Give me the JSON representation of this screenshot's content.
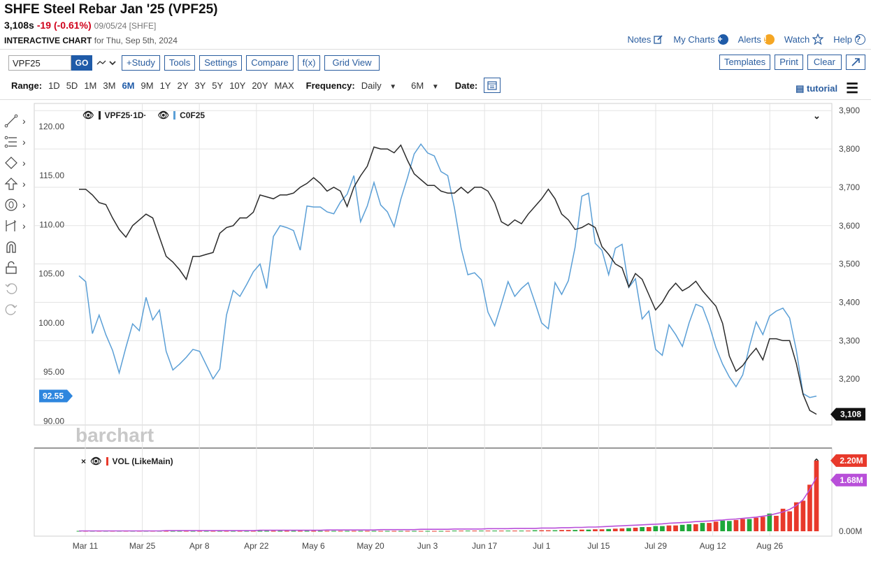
{
  "header": {
    "title": "SHFE Steel Rebar Jan '25 (VPF25)",
    "last": "3,108s",
    "change": "-19 (-0.61%)",
    "date_exchange": "09/05/24 [SHFE]",
    "chart_label": "INTERACTIVE CHART",
    "chart_for": "for Thu, Sep 5th, 2024"
  },
  "toplinks": {
    "notes": "Notes",
    "mycharts": "My Charts",
    "alerts": "Alerts",
    "watch": "Watch",
    "help": "Help"
  },
  "toolbar": {
    "symbol": "VPF25",
    "go": "GO",
    "study": "+Study",
    "tools": "Tools",
    "settings": "Settings",
    "compare": "Compare",
    "fx": "f(x)",
    "gridview": "Grid View",
    "templates": "Templates",
    "print": "Print",
    "clear": "Clear"
  },
  "ranges": {
    "label": "Range:",
    "items": [
      "1D",
      "5D",
      "1M",
      "3M",
      "6M",
      "9M",
      "1Y",
      "2Y",
      "3Y",
      "5Y",
      "10Y",
      "20Y",
      "MAX"
    ],
    "active": "6M",
    "freq_label": "Frequency:",
    "freq_value": "Daily",
    "period_value": "6M",
    "date_label": "Date:",
    "tutorial": "tutorial"
  },
  "legend": {
    "main_series": "VPF25·1D·",
    "compare_series": "C0F25",
    "volume_series": "VOL (LikeMain)"
  },
  "watermark": "barchart",
  "colors": {
    "price": "#2b2b2b",
    "compare": "#5b9fd6",
    "vol_up": "#1fa83a",
    "vol_down": "#e8392b",
    "vol_avg": "#b84fd9",
    "accent": "#1f5ba8"
  },
  "chart_data": [
    {
      "type": "line",
      "x_labels": [
        "Mar 11",
        "Mar 25",
        "Apr 8",
        "Apr 22",
        "May 6",
        "May 20",
        "Jun 3",
        "Jun 17",
        "Jul 1",
        "Jul 15",
        "Jul 29",
        "Aug 12",
        "Aug 26"
      ],
      "right_axis": {
        "ticks": [
          "3,900",
          "3,800",
          "3,700",
          "3,600",
          "3,500",
          "3,400",
          "3,300",
          "3,200"
        ],
        "ylim": [
          3080,
          3915
        ]
      },
      "left_axis": {
        "ticks": [
          "120.00",
          "115.00",
          "110.00",
          "105.00",
          "100.00",
          "95.00",
          "90.00"
        ],
        "ylim": [
          89.6,
          122.2
        ]
      },
      "series": [
        {
          "name": "VPF25",
          "axis": "right",
          "values": [
            3695,
            3695,
            3680,
            3660,
            3655,
            3620,
            3590,
            3570,
            3600,
            3615,
            3630,
            3620,
            3570,
            3520,
            3505,
            3485,
            3460,
            3520,
            3520,
            3525,
            3530,
            3580,
            3595,
            3600,
            3620,
            3620,
            3635,
            3680,
            3675,
            3670,
            3680,
            3680,
            3685,
            3700,
            3710,
            3725,
            3710,
            3690,
            3700,
            3690,
            3650,
            3700,
            3730,
            3755,
            3805,
            3800,
            3800,
            3790,
            3810,
            3770,
            3735,
            3720,
            3705,
            3705,
            3690,
            3685,
            3685,
            3700,
            3685,
            3700,
            3700,
            3690,
            3660,
            3610,
            3600,
            3615,
            3605,
            3630,
            3650,
            3670,
            3695,
            3670,
            3630,
            3615,
            3590,
            3595,
            3605,
            3595,
            3545,
            3525,
            3500,
            3490,
            3440,
            3475,
            3460,
            3420,
            3380,
            3400,
            3430,
            3450,
            3430,
            3440,
            3455,
            3430,
            3410,
            3390,
            3345,
            3260,
            3220,
            3235,
            3260,
            3280,
            3250,
            3305,
            3305,
            3300,
            3300,
            3240,
            3160,
            3118,
            3108
          ]
        },
        {
          "name": "C0F25",
          "axis": "left",
          "values": [
            104.8,
            104.2,
            98.9,
            100.8,
            98.8,
            97.2,
            94.9,
            97.5,
            99.9,
            99.2,
            102.6,
            100.3,
            101.3,
            97.1,
            95.2,
            95.8,
            96.5,
            97.3,
            97.1,
            95.7,
            94.3,
            95.3,
            100.8,
            103.3,
            102.7,
            103.9,
            105.2,
            106.0,
            103.5,
            108.8,
            109.9,
            109.7,
            109.4,
            107.4,
            111.9,
            111.8,
            111.8,
            111.3,
            111.1,
            112.3,
            113.1,
            115.0,
            110.3,
            111.9,
            114.3,
            112.0,
            111.3,
            109.8,
            112.6,
            114.8,
            117.2,
            118.2,
            117.3,
            117.0,
            115.4,
            115.0,
            111.7,
            107.6,
            104.9,
            105.1,
            104.4,
            101.1,
            99.7,
            101.9,
            104.2,
            102.7,
            103.5,
            104.1,
            102.1,
            100.0,
            99.4,
            104.1,
            102.9,
            104.3,
            107.7,
            112.9,
            113.2,
            108.1,
            107.4,
            104.9,
            107.6,
            108.0,
            103.6,
            104.5,
            100.4,
            101.2,
            97.3,
            96.7,
            99.8,
            98.8,
            97.6,
            100.0,
            101.9,
            101.6,
            99.8,
            97.5,
            95.8,
            94.5,
            93.5,
            94.7,
            97.6,
            100.1,
            98.8,
            100.7,
            101.2,
            101.5,
            100.5,
            97.2,
            92.8,
            92.4,
            92.55
          ]
        }
      ]
    },
    {
      "type": "bar",
      "series_name": "VOL (LikeMain)",
      "y_ticks": [
        "0.00M"
      ],
      "last_volume": "2.20M",
      "avg_volume": "1.68M",
      "up": [
        true,
        false,
        true,
        false,
        true,
        false,
        true,
        false,
        true,
        false,
        true,
        false,
        true,
        false,
        true,
        true,
        false,
        true,
        false,
        true,
        false,
        true,
        false,
        true,
        false,
        true,
        false,
        true,
        true,
        false,
        true,
        false,
        true,
        false,
        true,
        false,
        true,
        false,
        true,
        false,
        true,
        false,
        true,
        false,
        true,
        false,
        true,
        false,
        true,
        false,
        true,
        false,
        true,
        false,
        true,
        false,
        true,
        false,
        true,
        false,
        true,
        false,
        true,
        false,
        true,
        false,
        true,
        false,
        true,
        false,
        false,
        true,
        false,
        false,
        true,
        false,
        true,
        false,
        false,
        true,
        false,
        false,
        true,
        false,
        true,
        false,
        true,
        true,
        false,
        false,
        true,
        true,
        false,
        true,
        false,
        false,
        true,
        true,
        false,
        false,
        true,
        false,
        false,
        true,
        false,
        false,
        false,
        false,
        false,
        false,
        false
      ],
      "volume_millions": [
        0.01,
        0.01,
        0.01,
        0.01,
        0.01,
        0.01,
        0.01,
        0.01,
        0.01,
        0.01,
        0.01,
        0.01,
        0.01,
        0.01,
        0.01,
        0.01,
        0.01,
        0.01,
        0.01,
        0.01,
        0.01,
        0.01,
        0.01,
        0.01,
        0.01,
        0.01,
        0.01,
        0.01,
        0.01,
        0.01,
        0.01,
        0.01,
        0.01,
        0.01,
        0.01,
        0.01,
        0.01,
        0.01,
        0.01,
        0.01,
        0.01,
        0.01,
        0.01,
        0.01,
        0.01,
        0.01,
        0.01,
        0.01,
        0.01,
        0.01,
        0.01,
        0.01,
        0.01,
        0.01,
        0.01,
        0.01,
        0.02,
        0.02,
        0.02,
        0.02,
        0.02,
        0.02,
        0.02,
        0.02,
        0.02,
        0.02,
        0.02,
        0.02,
        0.03,
        0.03,
        0.03,
        0.03,
        0.04,
        0.04,
        0.04,
        0.05,
        0.05,
        0.06,
        0.06,
        0.07,
        0.08,
        0.09,
        0.1,
        0.11,
        0.13,
        0.13,
        0.16,
        0.16,
        0.18,
        0.18,
        0.2,
        0.22,
        0.22,
        0.26,
        0.26,
        0.3,
        0.33,
        0.32,
        0.35,
        0.38,
        0.38,
        0.42,
        0.45,
        0.55,
        0.48,
        0.7,
        0.62,
        0.9,
        0.95,
        1.45,
        2.2
      ],
      "avg_millions": [
        0.01,
        0.01,
        0.01,
        0.01,
        0.01,
        0.01,
        0.01,
        0.01,
        0.01,
        0.01,
        0.01,
        0.01,
        0.01,
        0.02,
        0.02,
        0.02,
        0.02,
        0.02,
        0.02,
        0.02,
        0.02,
        0.02,
        0.02,
        0.02,
        0.02,
        0.02,
        0.02,
        0.03,
        0.03,
        0.03,
        0.03,
        0.03,
        0.03,
        0.03,
        0.03,
        0.03,
        0.03,
        0.04,
        0.04,
        0.04,
        0.04,
        0.04,
        0.04,
        0.04,
        0.04,
        0.05,
        0.05,
        0.05,
        0.05,
        0.05,
        0.05,
        0.06,
        0.06,
        0.06,
        0.06,
        0.06,
        0.07,
        0.07,
        0.07,
        0.07,
        0.07,
        0.08,
        0.08,
        0.08,
        0.08,
        0.09,
        0.09,
        0.09,
        0.09,
        0.1,
        0.1,
        0.1,
        0.11,
        0.11,
        0.12,
        0.12,
        0.13,
        0.13,
        0.14,
        0.15,
        0.16,
        0.17,
        0.18,
        0.19,
        0.2,
        0.21,
        0.22,
        0.23,
        0.25,
        0.26,
        0.27,
        0.28,
        0.3,
        0.31,
        0.32,
        0.34,
        0.35,
        0.37,
        0.38,
        0.4,
        0.42,
        0.44,
        0.47,
        0.5,
        0.55,
        0.6,
        0.68,
        0.8,
        0.98,
        1.3,
        1.68
      ]
    }
  ],
  "tags": {
    "left_last": "92.55",
    "right_last": "3,108",
    "vol_last": "2.20M",
    "vol_avg": "1.68M"
  }
}
